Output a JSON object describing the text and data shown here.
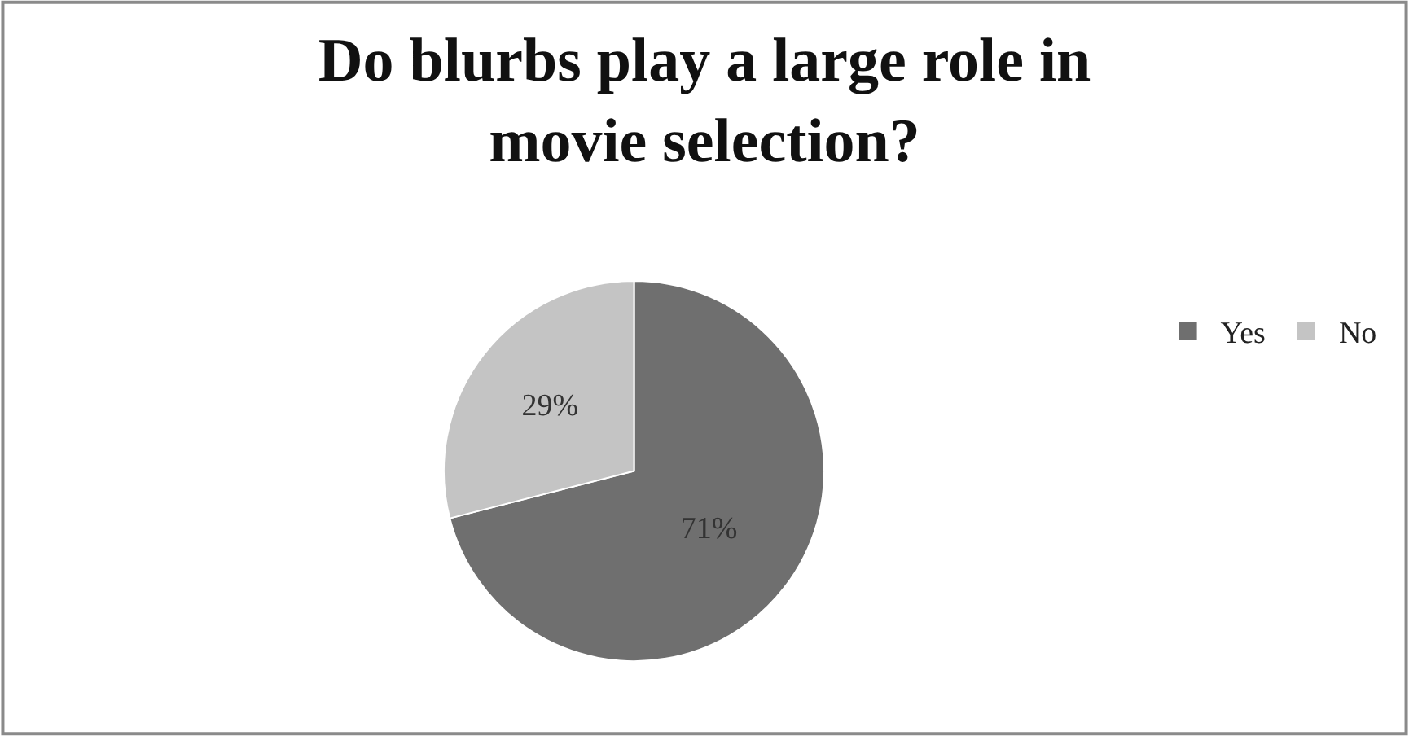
{
  "chart_data": {
    "type": "pie",
    "title": "Do blurbs play a large role in\nmovie selection?",
    "categories": [
      "Yes",
      "No"
    ],
    "values": [
      71,
      29
    ],
    "colors": [
      "#6f6f6f",
      "#c4c4c4"
    ],
    "value_labels": [
      "71%",
      "29%"
    ],
    "legend": "right"
  }
}
